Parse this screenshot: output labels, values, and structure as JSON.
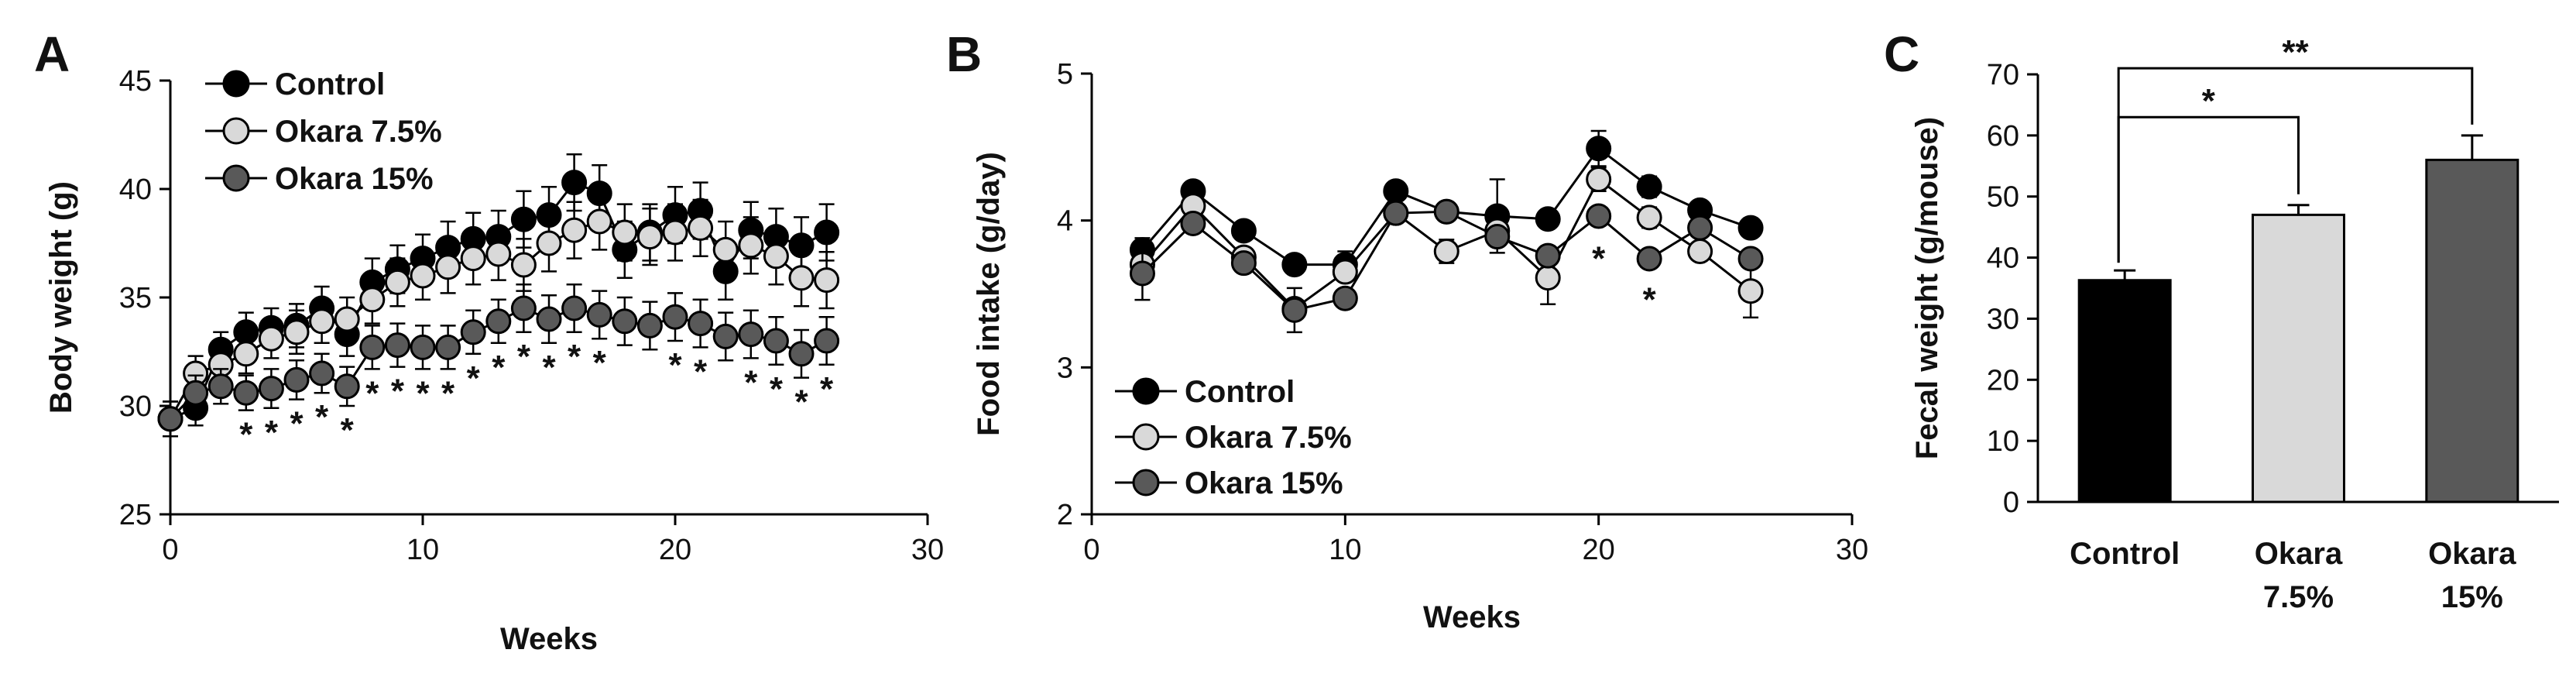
{
  "chart_data": [
    {
      "panel": "A",
      "type": "line",
      "xlabel": "Weeks",
      "ylabel": "Body weight (g)",
      "xlim": [
        0,
        30
      ],
      "ylim": [
        25,
        45
      ],
      "xticks": [
        0,
        10,
        20,
        30
      ],
      "yticks": [
        25,
        30,
        35,
        40,
        45
      ],
      "legend_position": "top-left",
      "series": [
        {
          "name": "Control",
          "color": "#000000",
          "x": [
            0,
            1,
            2,
            3,
            4,
            5,
            6,
            7,
            8,
            9,
            10,
            11,
            12,
            13,
            14,
            15,
            16,
            17,
            18,
            19,
            20,
            21,
            22,
            23,
            24,
            25,
            26
          ],
          "y": [
            29.4,
            29.9,
            32.6,
            33.4,
            33.6,
            33.7,
            34.5,
            33.3,
            35.7,
            36.3,
            36.8,
            37.3,
            37.7,
            37.8,
            38.6,
            38.8,
            40.3,
            39.8,
            37.2,
            38.0,
            38.8,
            39.0,
            36.2,
            38.1,
            37.8,
            37.4,
            38.0
          ],
          "err": [
            0.8,
            0.8,
            0.8,
            0.9,
            0.9,
            1.0,
            1.0,
            1.0,
            1.1,
            1.1,
            1.1,
            1.2,
            1.2,
            1.2,
            1.3,
            1.3,
            1.3,
            1.3,
            1.3,
            1.3,
            1.3,
            1.3,
            1.3,
            1.3,
            1.3,
            1.3,
            1.3
          ]
        },
        {
          "name": "Okara 7.5%",
          "color": "#d9d9d9",
          "x": [
            0,
            1,
            2,
            3,
            4,
            5,
            6,
            7,
            8,
            9,
            10,
            11,
            12,
            13,
            14,
            15,
            16,
            17,
            18,
            19,
            20,
            21,
            22,
            23,
            24,
            25,
            26
          ],
          "y": [
            29.4,
            31.5,
            31.9,
            32.4,
            33.1,
            33.4,
            33.9,
            34.0,
            34.9,
            35.7,
            36.0,
            36.4,
            36.8,
            37.0,
            36.5,
            37.5,
            38.1,
            38.5,
            38.0,
            37.8,
            38.0,
            38.2,
            37.2,
            37.4,
            36.9,
            35.9,
            35.8
          ],
          "err": [
            0.8,
            0.8,
            0.8,
            0.9,
            0.9,
            1.0,
            1.0,
            1.0,
            1.1,
            1.1,
            1.1,
            1.2,
            1.2,
            1.2,
            1.2,
            1.3,
            1.3,
            1.3,
            1.3,
            1.3,
            1.3,
            1.3,
            1.3,
            1.3,
            1.3,
            1.3,
            1.3
          ]
        },
        {
          "name": "Okara 15%",
          "color": "#595959",
          "x": [
            0,
            1,
            2,
            3,
            4,
            5,
            6,
            7,
            8,
            9,
            10,
            11,
            12,
            13,
            14,
            15,
            16,
            17,
            18,
            19,
            20,
            21,
            22,
            23,
            24,
            25,
            26
          ],
          "y": [
            29.4,
            30.6,
            30.9,
            30.6,
            30.8,
            31.2,
            31.5,
            30.9,
            32.7,
            32.8,
            32.7,
            32.7,
            33.4,
            33.9,
            34.5,
            34.0,
            34.5,
            34.2,
            33.9,
            33.7,
            34.1,
            33.8,
            33.2,
            33.3,
            33.0,
            32.4,
            33.0
          ],
          "err": [
            0.8,
            0.8,
            0.8,
            0.8,
            0.9,
            0.9,
            0.9,
            0.9,
            1.0,
            1.0,
            1.0,
            1.0,
            1.0,
            1.0,
            1.1,
            1.1,
            1.1,
            1.1,
            1.1,
            1.1,
            1.1,
            1.1,
            1.1,
            1.1,
            1.1,
            1.1,
            1.1
          ]
        }
      ],
      "annotations": [
        {
          "text": "*",
          "x": 3
        },
        {
          "text": "*",
          "x": 4
        },
        {
          "text": "*",
          "x": 5
        },
        {
          "text": "*",
          "x": 6
        },
        {
          "text": "*",
          "x": 7
        },
        {
          "text": "*",
          "x": 8
        },
        {
          "text": "*",
          "x": 9
        },
        {
          "text": "*",
          "x": 10
        },
        {
          "text": "*",
          "x": 11
        },
        {
          "text": "*",
          "x": 12
        },
        {
          "text": "*",
          "x": 13
        },
        {
          "text": "*",
          "x": 14
        },
        {
          "text": "*",
          "x": 15
        },
        {
          "text": "*",
          "x": 16
        },
        {
          "text": "*",
          "x": 17
        },
        {
          "text": "*",
          "x": 20
        },
        {
          "text": "*",
          "x": 21
        },
        {
          "text": "*",
          "x": 23
        },
        {
          "text": "*",
          "x": 24
        },
        {
          "text": "*",
          "x": 25
        },
        {
          "text": "*",
          "x": 26
        }
      ]
    },
    {
      "panel": "B",
      "type": "line",
      "xlabel": "Weeks",
      "ylabel": "Food intake (g/day)",
      "xlim": [
        0,
        30
      ],
      "ylim": [
        2,
        5
      ],
      "xticks": [
        0,
        10,
        20,
        30
      ],
      "yticks": [
        2,
        3,
        4,
        5
      ],
      "legend_position": "bottom-left",
      "series": [
        {
          "name": "Control",
          "color": "#000000",
          "x": [
            2,
            4,
            6,
            8,
            10,
            12,
            14,
            16,
            18,
            20,
            22,
            24,
            26
          ],
          "y": [
            3.8,
            4.2,
            3.93,
            3.7,
            3.7,
            4.2,
            4.06,
            4.03,
            4.01,
            4.49,
            4.23,
            4.07,
            3.95
          ],
          "err": [
            0.08,
            0.06,
            0.06,
            0.06,
            0.09,
            0.06,
            0.06,
            0.25,
            0.05,
            0.12,
            0.07,
            0.05,
            0.06
          ]
        },
        {
          "name": "Okara 7.5%",
          "color": "#d9d9d9",
          "x": [
            2,
            4,
            6,
            8,
            10,
            12,
            14,
            16,
            18,
            20,
            22,
            24,
            26
          ],
          "y": [
            3.7,
            4.1,
            3.75,
            3.4,
            3.65,
            4.05,
            3.79,
            3.93,
            3.61,
            4.28,
            4.02,
            3.79,
            3.52
          ],
          "err": [
            0.08,
            0.06,
            0.06,
            0.06,
            0.06,
            0.06,
            0.08,
            0.08,
            0.18,
            0.08,
            0.07,
            0.06,
            0.18
          ]
        },
        {
          "name": "Okara 15%",
          "color": "#595959",
          "x": [
            2,
            4,
            6,
            8,
            10,
            12,
            14,
            16,
            18,
            20,
            22,
            24,
            26
          ],
          "y": [
            3.64,
            3.98,
            3.71,
            3.39,
            3.47,
            4.05,
            4.06,
            3.89,
            3.76,
            4.03,
            3.74,
            3.95,
            3.74
          ],
          "err": [
            0.18,
            0.06,
            0.06,
            0.15,
            0.06,
            0.06,
            0.06,
            0.06,
            0.06,
            0.06,
            0.06,
            0.06,
            0.06
          ]
        }
      ],
      "annotations": [
        {
          "text": "*",
          "x": 20,
          "y": 3.78
        },
        {
          "text": "*",
          "x": 22,
          "y": 3.5
        }
      ]
    },
    {
      "panel": "C",
      "type": "bar",
      "ylabel": "Fecal weight (g/mouse)",
      "ylim": [
        0,
        70
      ],
      "yticks": [
        0,
        10,
        20,
        30,
        40,
        50,
        60,
        70
      ],
      "categories": [
        [
          "Control"
        ],
        [
          "Okara",
          "7.5%"
        ],
        [
          "Okara",
          "15%"
        ]
      ],
      "values": [
        36.3,
        47.0,
        56.0
      ],
      "err": [
        1.6,
        1.6,
        4.0
      ],
      "colors": [
        "#000000",
        "#d9d9d9",
        "#595959"
      ],
      "significance": [
        {
          "from": 0,
          "to": 1,
          "label": "*",
          "y": 63
        },
        {
          "from": 0,
          "to": 2,
          "label": "**",
          "y": 71
        }
      ]
    }
  ]
}
